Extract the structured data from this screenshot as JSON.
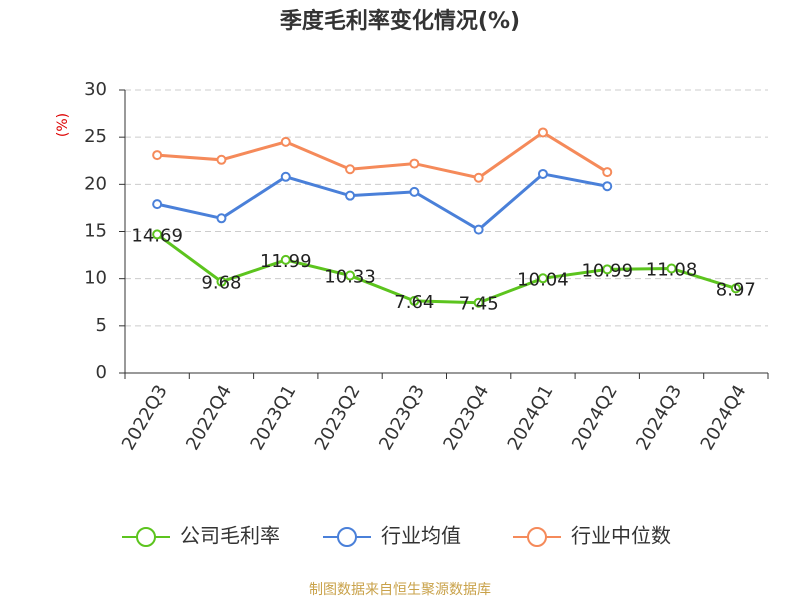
{
  "chart_data": {
    "type": "line",
    "title": "季度毛利率变化情况(%)",
    "y_label": "(%)",
    "categories": [
      "2022Q3",
      "2022Q4",
      "2023Q1",
      "2023Q2",
      "2023Q3",
      "2023Q4",
      "2024Q1",
      "2024Q2",
      "2024Q3",
      "2024Q4"
    ],
    "series": [
      {
        "name": "公司毛利率",
        "color": "#5cc41e",
        "values": [
          14.69,
          9.68,
          11.99,
          10.33,
          7.64,
          7.45,
          10.04,
          10.99,
          11.08,
          8.97
        ]
      },
      {
        "name": "行业均值",
        "color": "#4a80d9",
        "values": [
          17.9,
          16.4,
          20.8,
          18.8,
          19.2,
          15.2,
          21.1,
          19.8,
          null,
          null
        ]
      },
      {
        "name": "行业中位数",
        "color": "#f58a5a",
        "values": [
          23.1,
          22.6,
          24.5,
          21.6,
          22.2,
          20.7,
          25.5,
          21.3,
          null,
          null
        ]
      }
    ],
    "data_labels_series": 0,
    "ylim": [
      0,
      30
    ],
    "yticks": [
      0,
      5,
      10,
      15,
      20,
      25,
      30
    ],
    "grid": true,
    "source": "制图数据来自恒生聚源数据库"
  }
}
